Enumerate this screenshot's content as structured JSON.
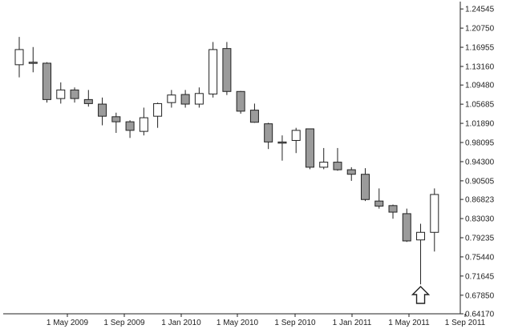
{
  "chart_data": {
    "type": "candlestick",
    "title": "",
    "xlabel": "",
    "ylabel": "",
    "x_tick_labels": [
      "1 May 2009",
      "1 Sep 2009",
      "1 Jan 2010",
      "1 May 2010",
      "1 Sep 2010",
      "1 Jan 2011",
      "1 May 2011",
      "1 Sep 2011"
    ],
    "y_tick_labels": [
      "1.24545",
      "1.20750",
      "1.16955",
      "1.13160",
      "1.09480",
      "1.05685",
      "1.01890",
      "0.98095",
      "0.94300",
      "0.90505",
      "0.86823",
      "0.83030",
      "0.79235",
      "0.75440",
      "0.71645",
      "0.67850",
      "0.64170"
    ],
    "ylim": [
      0.6417,
      1.26
    ],
    "grid": false,
    "candle_colors": {
      "up": "#ffffff",
      "down": "#9b9b9b",
      "outline": "#222222"
    },
    "annotation": "up-arrow-marker",
    "candles": [
      {
        "open": 1.135,
        "high": 1.19,
        "low": 1.11,
        "close": 1.165
      },
      {
        "open": 1.14,
        "high": 1.17,
        "low": 1.12,
        "close": 1.138
      },
      {
        "open": 1.138,
        "high": 1.14,
        "low": 1.06,
        "close": 1.066
      },
      {
        "open": 1.068,
        "high": 1.1,
        "low": 1.058,
        "close": 1.085
      },
      {
        "open": 1.085,
        "high": 1.09,
        "low": 1.06,
        "close": 1.068
      },
      {
        "open": 1.066,
        "high": 1.085,
        "low": 1.052,
        "close": 1.058
      },
      {
        "open": 1.057,
        "high": 1.07,
        "low": 1.015,
        "close": 1.033
      },
      {
        "open": 1.032,
        "high": 1.04,
        "low": 1.0,
        "close": 1.022
      },
      {
        "open": 1.022,
        "high": 1.025,
        "low": 0.99,
        "close": 1.005
      },
      {
        "open": 1.003,
        "high": 1.05,
        "low": 0.995,
        "close": 1.03
      },
      {
        "open": 1.033,
        "high": 1.06,
        "low": 1.01,
        "close": 1.058
      },
      {
        "open": 1.06,
        "high": 1.085,
        "low": 1.05,
        "close": 1.075
      },
      {
        "open": 1.076,
        "high": 1.085,
        "low": 1.05,
        "close": 1.057
      },
      {
        "open": 1.057,
        "high": 1.09,
        "low": 1.05,
        "close": 1.078
      },
      {
        "open": 1.077,
        "high": 1.18,
        "low": 1.07,
        "close": 1.165
      },
      {
        "open": 1.167,
        "high": 1.18,
        "low": 1.075,
        "close": 1.082
      },
      {
        "open": 1.082,
        "high": 1.083,
        "low": 1.038,
        "close": 1.043
      },
      {
        "open": 1.045,
        "high": 1.058,
        "low": 1.02,
        "close": 1.021
      },
      {
        "open": 1.018,
        "high": 1.02,
        "low": 0.968,
        "close": 0.982
      },
      {
        "open": 0.982,
        "high": 0.995,
        "low": 0.945,
        "close": 0.981
      },
      {
        "open": 0.985,
        "high": 1.01,
        "low": 0.96,
        "close": 1.005
      },
      {
        "open": 1.008,
        "high": 1.008,
        "low": 0.928,
        "close": 0.932
      },
      {
        "open": 0.932,
        "high": 0.97,
        "low": 0.928,
        "close": 0.942
      },
      {
        "open": 0.942,
        "high": 0.97,
        "low": 0.925,
        "close": 0.927
      },
      {
        "open": 0.927,
        "high": 0.932,
        "low": 0.905,
        "close": 0.918
      },
      {
        "open": 0.918,
        "high": 0.93,
        "low": 0.865,
        "close": 0.868
      },
      {
        "open": 0.865,
        "high": 0.89,
        "low": 0.85,
        "close": 0.855
      },
      {
        "open": 0.856,
        "high": 0.858,
        "low": 0.83,
        "close": 0.843
      },
      {
        "open": 0.84,
        "high": 0.85,
        "low": 0.784,
        "close": 0.786
      },
      {
        "open": 0.788,
        "high": 0.82,
        "low": 0.7,
        "close": 0.803
      },
      {
        "open": 0.803,
        "high": 0.89,
        "low": 0.765,
        "close": 0.878
      }
    ]
  }
}
